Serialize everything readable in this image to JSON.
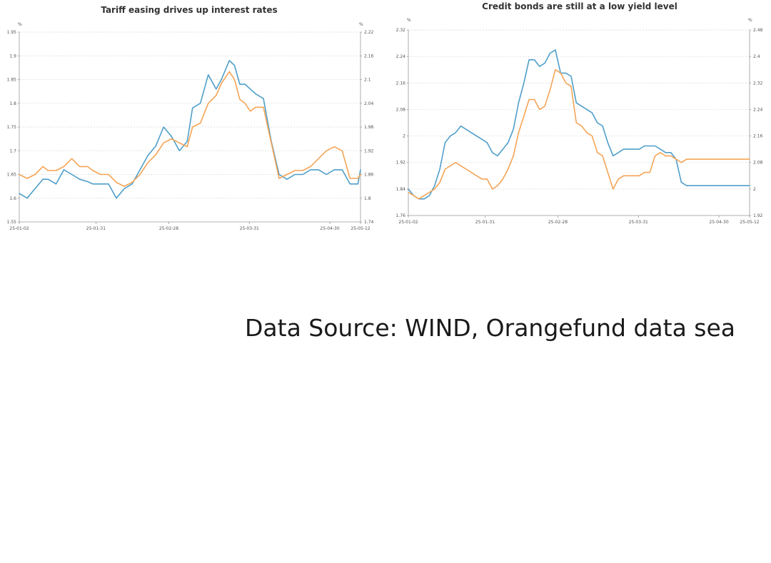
{
  "colors": {
    "series_a": "#4f9fc9",
    "series_b": "#f5a455",
    "grid": "#d9d9d9",
    "axis": "#999999",
    "text": "#333333"
  },
  "source_note": "Data Source: WIND, Orangefund data sea",
  "chart_data": [
    {
      "type": "line",
      "title": "Tariff easing drives up interest rates",
      "left_axis_unit": "%",
      "right_axis_unit": "%",
      "left_ylim": [
        1.55,
        1.95
      ],
      "right_ylim": [
        1.74,
        2.22
      ],
      "left_ticks": [
        "1.95",
        "1.9",
        "1.85",
        "1.8",
        "1.75",
        "1.7",
        "1.65",
        "1.6",
        "1.55"
      ],
      "right_ticks": [
        "2.22",
        "2.16",
        "2.1",
        "2.04",
        "1.98",
        "1.92",
        "1.86",
        "1.8",
        "1.74"
      ],
      "x_tick_labels": [
        "25-01-02",
        "25-01-31",
        "25-02-28",
        "25-03-31",
        "25-04-30",
        "25-05-12"
      ],
      "grid": true,
      "x": [
        0,
        3,
        6,
        9,
        11,
        14,
        17,
        20,
        23,
        26,
        28,
        31,
        34,
        37,
        40,
        43,
        46,
        49,
        52,
        55,
        58,
        61,
        64,
        66,
        69,
        72,
        75,
        77,
        80,
        82,
        84,
        86,
        88,
        90,
        93,
        96,
        99,
        102,
        105,
        108,
        111,
        114,
        117,
        120,
        123,
        126,
        129,
        130
      ],
      "series": [
        {
          "axis": "left",
          "values": [
            1.61,
            1.6,
            1.62,
            1.64,
            1.64,
            1.63,
            1.66,
            1.65,
            1.64,
            1.635,
            1.63,
            1.63,
            1.63,
            1.6,
            1.62,
            1.63,
            1.66,
            1.69,
            1.71,
            1.75,
            1.73,
            1.7,
            1.72,
            1.79,
            1.8,
            1.86,
            1.83,
            1.85,
            1.89,
            1.88,
            1.84,
            1.84,
            1.83,
            1.82,
            1.81,
            1.72,
            1.65,
            1.64,
            1.65,
            1.65,
            1.66,
            1.66,
            1.65,
            1.66,
            1.66,
            1.63,
            1.63,
            1.66
          ]
        },
        {
          "axis": "right",
          "values": [
            1.86,
            1.85,
            1.86,
            1.88,
            1.87,
            1.87,
            1.88,
            1.9,
            1.88,
            1.88,
            1.87,
            1.86,
            1.86,
            1.84,
            1.83,
            1.84,
            1.86,
            1.89,
            1.91,
            1.94,
            1.95,
            1.94,
            1.93,
            1.98,
            1.99,
            2.04,
            2.06,
            2.09,
            2.12,
            2.1,
            2.05,
            2.04,
            2.02,
            2.03,
            2.03,
            1.94,
            1.85,
            1.86,
            1.87,
            1.87,
            1.88,
            1.9,
            1.92,
            1.93,
            1.92,
            1.85,
            1.85,
            1.86
          ]
        }
      ]
    },
    {
      "type": "line",
      "title": "Credit bonds are still at a low yield level",
      "left_axis_unit": "%",
      "right_axis_unit": "%",
      "left_ylim": [
        1.76,
        2.32
      ],
      "right_ylim": [
        1.92,
        2.48
      ],
      "left_ticks": [
        "2.32",
        "2.24",
        "2.16",
        "2.08",
        "2",
        "1.92",
        "1.84",
        "1.76"
      ],
      "right_ticks": [
        "2.48",
        "2.4",
        "2.32",
        "2.24",
        "2.16",
        "2.08",
        "2",
        "1.92"
      ],
      "x_tick_labels": [
        "25-01-02",
        "25-01-31",
        "25-02-28",
        "25-03-31",
        "25-04-30",
        "25-05-12"
      ],
      "grid": true,
      "x": [
        0,
        2,
        4,
        6,
        8,
        10,
        12,
        14,
        16,
        18,
        20,
        22,
        24,
        26,
        28,
        30,
        32,
        34,
        36,
        38,
        40,
        42,
        44,
        46,
        48,
        50,
        52,
        54,
        56,
        58,
        60,
        62,
        64,
        66,
        68,
        70,
        72,
        74,
        76,
        78,
        80,
        82,
        84,
        86,
        88,
        90,
        92,
        94,
        96,
        98,
        100,
        102,
        104,
        106,
        108,
        110,
        112,
        114,
        116,
        118,
        120,
        122,
        124,
        126,
        128,
        130
      ],
      "series": [
        {
          "axis": "left",
          "values": [
            1.84,
            1.82,
            1.81,
            1.81,
            1.82,
            1.85,
            1.9,
            1.98,
            2.0,
            2.01,
            2.03,
            2.02,
            2.01,
            2.0,
            1.99,
            1.98,
            1.95,
            1.94,
            1.96,
            1.98,
            2.02,
            2.1,
            2.16,
            2.23,
            2.23,
            2.21,
            2.22,
            2.25,
            2.26,
            2.19,
            2.19,
            2.18,
            2.1,
            2.09,
            2.08,
            2.07,
            2.04,
            2.03,
            1.98,
            1.94,
            1.95,
            1.96,
            1.96,
            1.96,
            1.96,
            1.97,
            1.97,
            1.97,
            1.96,
            1.95,
            1.95,
            1.93,
            1.86,
            1.85,
            1.85,
            1.85,
            1.85,
            1.85,
            1.85,
            1.85,
            1.85,
            1.85,
            1.85,
            1.85,
            1.85,
            1.85
          ]
        },
        {
          "axis": "right",
          "values": [
            1.99,
            1.98,
            1.97,
            1.98,
            1.99,
            2.0,
            2.02,
            2.06,
            2.07,
            2.08,
            2.07,
            2.06,
            2.05,
            2.04,
            2.03,
            2.03,
            2.0,
            2.01,
            2.03,
            2.06,
            2.1,
            2.17,
            2.22,
            2.27,
            2.27,
            2.24,
            2.25,
            2.3,
            2.36,
            2.35,
            2.32,
            2.31,
            2.2,
            2.19,
            2.17,
            2.16,
            2.11,
            2.1,
            2.05,
            2.0,
            2.03,
            2.04,
            2.04,
            2.04,
            2.04,
            2.05,
            2.05,
            2.1,
            2.11,
            2.1,
            2.1,
            2.09,
            2.08,
            2.09,
            2.09,
            2.09,
            2.09,
            2.09,
            2.09,
            2.09,
            2.09,
            2.09,
            2.09,
            2.09,
            2.09,
            2.09
          ]
        }
      ]
    }
  ]
}
